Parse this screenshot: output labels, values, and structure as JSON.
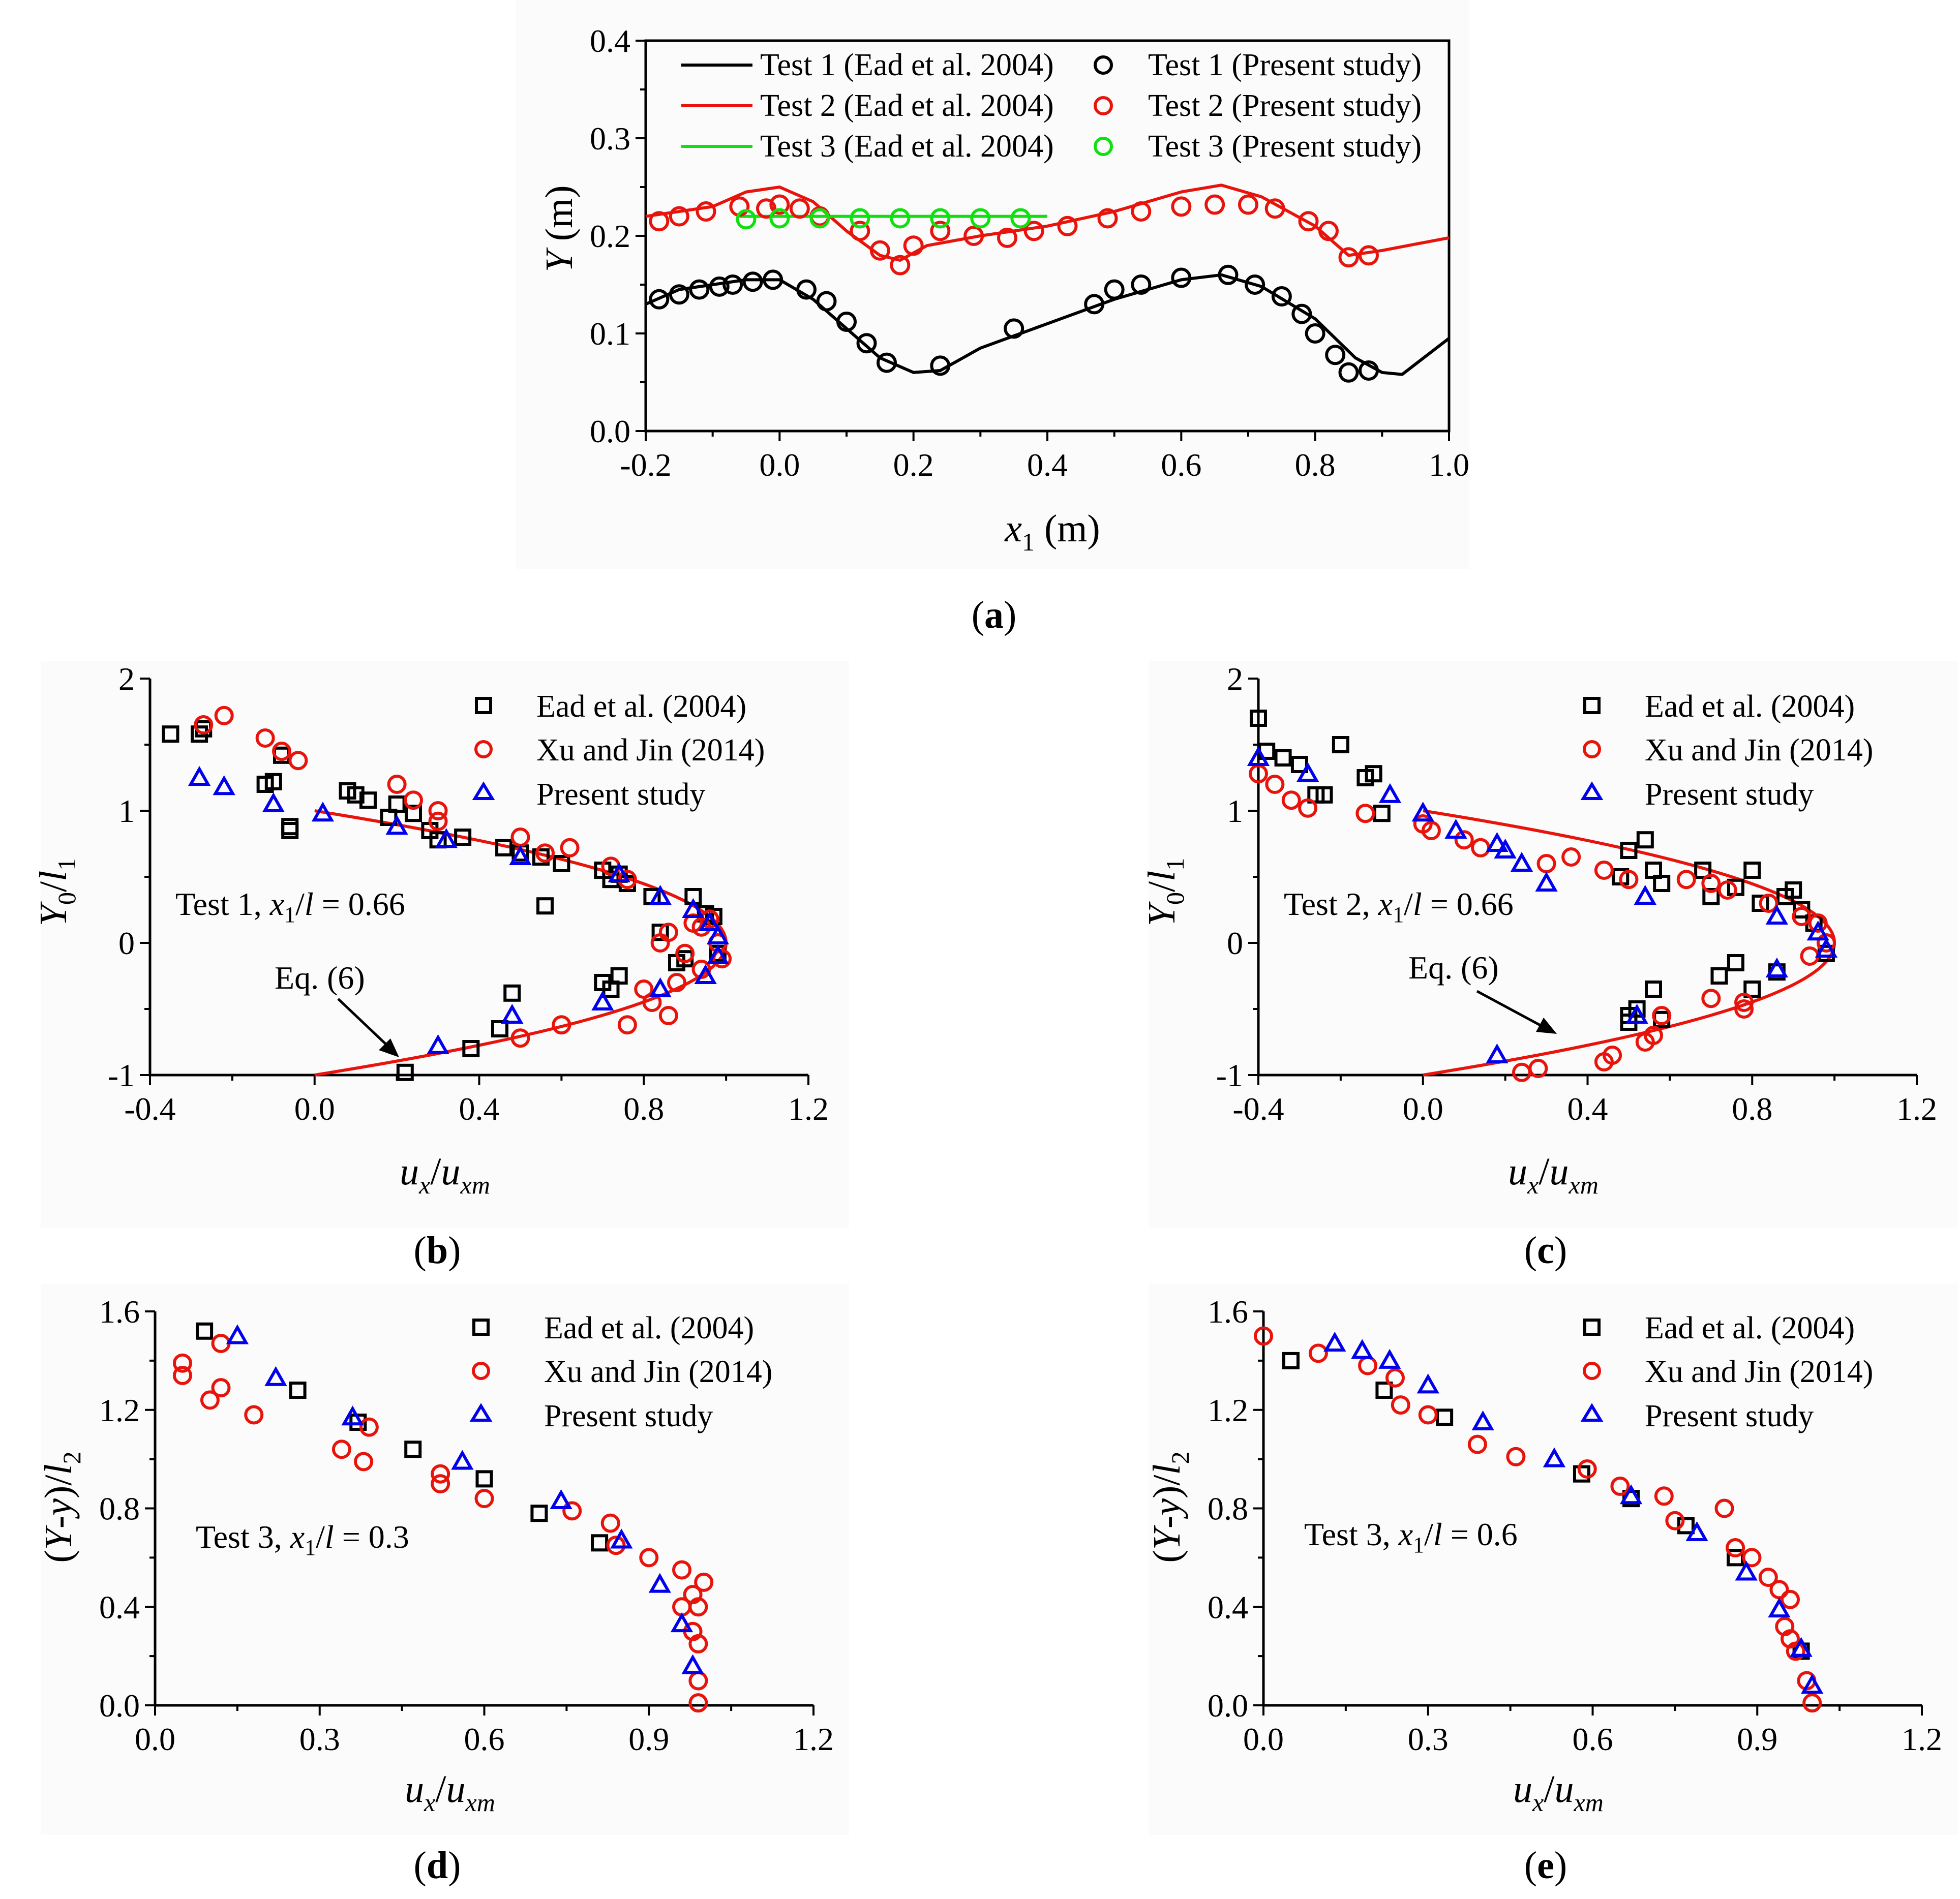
{
  "chart_data": [
    {
      "id": "a",
      "type": "line",
      "caption": "(a)",
      "xlabel": "x1 (m)",
      "ylabel": "Y (m)",
      "xlim": [
        -0.2,
        1.0
      ],
      "ylim": [
        0.0,
        0.4
      ],
      "xticks": [
        "-0.2",
        "0.0",
        "0.2",
        "0.4",
        "0.6",
        "0.8",
        "1.0"
      ],
      "yticks": [
        "0.0",
        "0.1",
        "0.2",
        "0.3",
        "0.4"
      ],
      "series": [
        {
          "name": "Test 1 (Ead et al. 2004)",
          "kind": "line",
          "color": "#000000",
          "x": [
            -0.2,
            -0.15,
            -0.1,
            -0.05,
            0.0,
            0.05,
            0.1,
            0.15,
            0.2,
            0.24,
            0.3,
            0.4,
            0.5,
            0.6,
            0.66,
            0.72,
            0.8,
            0.86,
            0.9,
            0.93,
            1.0
          ],
          "y": [
            0.13,
            0.145,
            0.15,
            0.155,
            0.155,
            0.135,
            0.105,
            0.075,
            0.06,
            0.062,
            0.085,
            0.11,
            0.135,
            0.155,
            0.16,
            0.148,
            0.115,
            0.075,
            0.06,
            0.058,
            0.095
          ]
        },
        {
          "name": "Test 2 (Ead et al. 2004)",
          "kind": "line",
          "color": "#e8140c",
          "x": [
            -0.2,
            -0.1,
            -0.05,
            0.0,
            0.05,
            0.1,
            0.15,
            0.18,
            0.22,
            0.3,
            0.4,
            0.5,
            0.6,
            0.66,
            0.72,
            0.8,
            0.85,
            0.9,
            1.0
          ],
          "y": [
            0.22,
            0.23,
            0.245,
            0.25,
            0.235,
            0.205,
            0.18,
            0.175,
            0.19,
            0.2,
            0.21,
            0.225,
            0.245,
            0.252,
            0.24,
            0.21,
            0.18,
            0.185,
            0.198
          ]
        },
        {
          "name": "Test 3 (Ead et al. 2004)",
          "kind": "line",
          "color": "#10e010",
          "x": [
            -0.06,
            0.4
          ],
          "y": [
            0.22,
            0.22
          ]
        },
        {
          "name": "Test 1 (Present study)",
          "kind": "circle",
          "color": "#000000",
          "x": [
            -0.18,
            -0.15,
            -0.12,
            -0.09,
            -0.07,
            -0.04,
            -0.01,
            0.04,
            0.07,
            0.1,
            0.13,
            0.16,
            0.24,
            0.35,
            0.47,
            0.5,
            0.54,
            0.6,
            0.67,
            0.71,
            0.75,
            0.78,
            0.8,
            0.83,
            0.85,
            0.88
          ],
          "y": [
            0.135,
            0.14,
            0.145,
            0.148,
            0.15,
            0.153,
            0.155,
            0.145,
            0.133,
            0.112,
            0.09,
            0.07,
            0.067,
            0.105,
            0.13,
            0.145,
            0.15,
            0.157,
            0.16,
            0.15,
            0.138,
            0.12,
            0.1,
            0.078,
            0.06,
            0.062
          ]
        },
        {
          "name": "Test 2 (Present study)",
          "kind": "circle",
          "color": "#e8140c",
          "x": [
            -0.18,
            -0.15,
            -0.11,
            -0.06,
            -0.02,
            0.0,
            0.03,
            0.06,
            0.12,
            0.15,
            0.18,
            0.2,
            0.24,
            0.29,
            0.34,
            0.38,
            0.43,
            0.49,
            0.54,
            0.6,
            0.65,
            0.7,
            0.74,
            0.79,
            0.82,
            0.85,
            0.88
          ],
          "y": [
            0.215,
            0.22,
            0.225,
            0.23,
            0.228,
            0.232,
            0.228,
            0.22,
            0.205,
            0.185,
            0.17,
            0.19,
            0.205,
            0.2,
            0.198,
            0.205,
            0.21,
            0.218,
            0.225,
            0.23,
            0.232,
            0.232,
            0.228,
            0.215,
            0.205,
            0.178,
            0.18
          ]
        },
        {
          "name": "Test 3 (Present study)",
          "kind": "circle",
          "color": "#10e010",
          "x": [
            -0.05,
            0.0,
            0.06,
            0.12,
            0.18,
            0.24,
            0.3,
            0.36
          ],
          "y": [
            0.217,
            0.218,
            0.218,
            0.218,
            0.218,
            0.218,
            0.218,
            0.218
          ]
        }
      ]
    },
    {
      "id": "b",
      "type": "scatter",
      "caption": "(b)",
      "xlabel": "ux/uxm",
      "ylabel": "Y0/l1",
      "annotation": "Test 1, x1/l = 0.66",
      "eq_label": "Eq. (6)",
      "xlim": [
        -0.4,
        1.2
      ],
      "ylim": [
        -1,
        2
      ],
      "xticks": [
        "-0.4",
        "0.0",
        "0.4",
        "0.8",
        "1.2"
      ],
      "yticks": [
        "-1",
        "0",
        "1",
        "2"
      ],
      "series": [
        {
          "name": "Eq. (6)",
          "kind": "curve",
          "color": "#e8140c"
        },
        {
          "name": "Ead et al. (2004)",
          "kind": "square",
          "color": "#000000",
          "x": [
            -0.35,
            -0.28,
            -0.27,
            -0.12,
            -0.1,
            -0.08,
            -0.06,
            -0.06,
            0.08,
            0.1,
            0.13,
            0.18,
            0.2,
            0.24,
            0.28,
            0.3,
            0.36,
            0.46,
            0.5,
            0.55,
            0.6,
            0.7,
            0.72,
            0.74,
            0.76,
            0.82,
            0.84,
            0.88,
            0.9,
            0.92,
            0.95,
            0.97,
            0.98,
            0.7,
            0.72,
            0.74,
            0.56,
            0.48,
            0.45,
            0.38,
            0.22
          ],
          "y": [
            1.58,
            1.58,
            1.62,
            1.2,
            1.22,
            1.42,
            0.88,
            0.85,
            1.15,
            1.12,
            1.08,
            0.95,
            1.05,
            0.98,
            0.85,
            0.78,
            0.8,
            0.72,
            0.68,
            0.65,
            0.6,
            0.55,
            0.48,
            0.52,
            0.45,
            0.35,
            0.08,
            -0.15,
            -0.12,
            0.35,
            0.22,
            0.2,
            -0.08,
            -0.3,
            -0.35,
            -0.25,
            0.28,
            -0.38,
            -0.65,
            -0.8,
            -0.98
          ]
        },
        {
          "name": "Xu and Jin (2014)",
          "kind": "circle",
          "color": "#e8140c",
          "x": [
            -0.27,
            -0.22,
            -0.12,
            -0.08,
            -0.04,
            0.2,
            0.24,
            0.3,
            0.3,
            0.5,
            0.56,
            0.62,
            0.72,
            0.76,
            0.84,
            0.86,
            0.9,
            0.92,
            0.94,
            0.96,
            0.98,
            0.99,
            0.94,
            0.88,
            0.86,
            0.82,
            0.8,
            0.76,
            0.6,
            0.5
          ],
          "y": [
            1.65,
            1.72,
            1.55,
            1.45,
            1.38,
            1.2,
            1.08,
            0.92,
            1.0,
            0.8,
            0.68,
            0.72,
            0.58,
            0.48,
            0.0,
            0.08,
            -0.08,
            0.15,
            0.12,
            0.18,
            0.0,
            -0.12,
            -0.2,
            -0.3,
            -0.55,
            -0.45,
            -0.35,
            -0.62,
            -0.62,
            -0.72
          ]
        },
        {
          "name": "Present study",
          "kind": "triangle",
          "color": "#0000ee",
          "x": [
            -0.28,
            -0.22,
            -0.1,
            0.02,
            0.2,
            0.32,
            0.5,
            0.74,
            0.84,
            0.92,
            0.96,
            0.98,
            0.98,
            0.95,
            0.84,
            0.7,
            0.48,
            0.3
          ],
          "y": [
            1.25,
            1.18,
            1.05,
            0.98,
            0.88,
            0.78,
            0.65,
            0.52,
            0.35,
            0.25,
            0.15,
            0.05,
            -0.1,
            -0.25,
            -0.35,
            -0.45,
            -0.55,
            -0.78
          ]
        }
      ]
    },
    {
      "id": "c",
      "type": "scatter",
      "caption": "(c)",
      "xlabel": "ux/uxm",
      "ylabel": "Y0/l1",
      "annotation": "Test 2, x1/l = 0.66",
      "eq_label": "Eq. (6)",
      "xlim": [
        -0.4,
        1.2
      ],
      "ylim": [
        -1,
        2
      ],
      "xticks": [
        "-0.4",
        "0.0",
        "0.4",
        "0.8",
        "1.2"
      ],
      "yticks": [
        "-1",
        "0",
        "1",
        "2"
      ],
      "series": [
        {
          "name": "Eq. (6)",
          "kind": "curve",
          "color": "#e8140c"
        },
        {
          "name": "Ead et al. (2004)",
          "kind": "square",
          "color": "#000000",
          "x": [
            -0.4,
            -0.38,
            -0.34,
            -0.3,
            -0.26,
            -0.24,
            -0.2,
            -0.14,
            -0.12,
            -0.1,
            0.48,
            0.5,
            0.54,
            0.56,
            0.58,
            0.68,
            0.7,
            0.76,
            0.8,
            0.82,
            0.88,
            0.9,
            0.92,
            0.95,
            0.98,
            0.72,
            0.76,
            0.8,
            0.86,
            0.5,
            0.52,
            0.56,
            0.58,
            0.5
          ],
          "y": [
            1.7,
            1.45,
            1.4,
            1.35,
            1.12,
            1.12,
            1.5,
            1.25,
            1.28,
            0.98,
            0.5,
            0.7,
            0.78,
            0.55,
            0.45,
            0.55,
            0.35,
            0.42,
            0.55,
            0.3,
            0.35,
            0.4,
            0.25,
            0.15,
            -0.08,
            -0.25,
            -0.15,
            -0.35,
            -0.22,
            -0.55,
            -0.5,
            -0.35,
            -0.58,
            -0.6
          ]
        },
        {
          "name": "Xu and Jin (2014)",
          "kind": "circle",
          "color": "#e8140c",
          "x": [
            -0.4,
            -0.36,
            -0.32,
            -0.28,
            -0.14,
            0.0,
            0.02,
            0.1,
            0.14,
            0.3,
            0.36,
            0.44,
            0.5,
            0.64,
            0.7,
            0.74,
            0.84,
            0.92,
            0.96,
            0.98,
            0.94,
            0.78,
            0.78,
            0.7,
            0.58,
            0.56,
            0.54,
            0.46,
            0.44,
            0.28,
            0.24
          ],
          "y": [
            1.28,
            1.2,
            1.08,
            1.02,
            0.98,
            0.9,
            0.85,
            0.78,
            0.72,
            0.6,
            0.65,
            0.55,
            0.48,
            0.48,
            0.45,
            0.4,
            0.3,
            0.2,
            0.15,
            0.0,
            -0.1,
            -0.45,
            -0.5,
            -0.42,
            -0.55,
            -0.7,
            -0.75,
            -0.85,
            -0.9,
            -0.95,
            -0.98
          ]
        },
        {
          "name": "Present study",
          "kind": "triangle",
          "color": "#0000ee",
          "x": [
            -0.4,
            -0.28,
            -0.08,
            0.0,
            0.08,
            0.18,
            0.2,
            0.24,
            0.3,
            0.54,
            0.86,
            0.96,
            0.98,
            0.86,
            0.52,
            0.18
          ],
          "y": [
            1.4,
            1.28,
            1.12,
            0.98,
            0.85,
            0.75,
            0.7,
            0.6,
            0.45,
            0.35,
            0.2,
            0.08,
            -0.05,
            -0.2,
            -0.55,
            -0.85
          ]
        }
      ]
    },
    {
      "id": "d",
      "type": "scatter",
      "caption": "(d)",
      "xlabel": "ux/uxm",
      "ylabel": "(Y-y)/l2",
      "annotation": "Test 3, x1/l = 0.3",
      "xlim": [
        0.0,
        1.2
      ],
      "ylim": [
        0.0,
        1.6
      ],
      "xticks": [
        "0.0",
        "0.3",
        "0.6",
        "0.9",
        "1.2"
      ],
      "yticks": [
        "0.0",
        "0.4",
        "0.8",
        "1.2",
        "1.6"
      ],
      "series": [
        {
          "name": "Ead et al. (2004)",
          "kind": "square",
          "color": "#000000",
          "x": [
            0.09,
            0.26,
            0.37,
            0.47,
            0.6,
            0.7,
            0.81
          ],
          "y": [
            1.52,
            1.28,
            1.15,
            1.04,
            0.92,
            0.78,
            0.66
          ]
        },
        {
          "name": "Xu and Jin (2014)",
          "kind": "circle",
          "color": "#e8140c",
          "x": [
            0.05,
            0.05,
            0.1,
            0.12,
            0.12,
            0.18,
            0.34,
            0.38,
            0.39,
            0.52,
            0.52,
            0.6,
            0.76,
            0.83,
            0.84,
            0.9,
            0.96,
            0.98,
            1.0,
            0.99,
            0.96,
            0.98,
            0.99,
            0.99,
            0.99
          ],
          "y": [
            1.39,
            1.34,
            1.24,
            1.29,
            1.47,
            1.18,
            1.04,
            0.99,
            1.13,
            0.94,
            0.9,
            0.84,
            0.79,
            0.74,
            0.65,
            0.6,
            0.55,
            0.45,
            0.5,
            0.4,
            0.4,
            0.3,
            0.25,
            0.1,
            0.01
          ]
        },
        {
          "name": "Present study",
          "kind": "triangle",
          "color": "#0000ee",
          "x": [
            0.15,
            0.22,
            0.36,
            0.56,
            0.74,
            0.85,
            0.92,
            0.96,
            0.98
          ],
          "y": [
            1.5,
            1.33,
            1.17,
            0.99,
            0.83,
            0.67,
            0.49,
            0.33,
            0.16
          ]
        }
      ]
    },
    {
      "id": "e",
      "type": "scatter",
      "caption": "(e)",
      "xlabel": "ux/uxm",
      "ylabel": "(Y-y)/l2",
      "annotation": "Test 3, x1/l = 0.6",
      "xlim": [
        0.0,
        1.2
      ],
      "ylim": [
        0.0,
        1.6
      ],
      "xticks": [
        "0.0",
        "0.3",
        "0.6",
        "0.9",
        "1.2"
      ],
      "yticks": [
        "0.0",
        "0.4",
        "0.8",
        "1.2",
        "1.6"
      ],
      "series": [
        {
          "name": "Ead et al. (2004)",
          "kind": "square",
          "color": "#000000",
          "x": [
            0.05,
            0.22,
            0.33,
            0.58,
            0.67,
            0.77,
            0.86,
            0.98
          ],
          "y": [
            1.4,
            1.28,
            1.17,
            0.94,
            0.84,
            0.73,
            0.6,
            0.22
          ]
        },
        {
          "name": "Xu and Jin (2014)",
          "kind": "circle",
          "color": "#e8140c",
          "x": [
            0.0,
            0.1,
            0.19,
            0.24,
            0.25,
            0.3,
            0.39,
            0.46,
            0.59,
            0.65,
            0.73,
            0.75,
            0.84,
            0.86,
            0.89,
            0.92,
            0.94,
            0.96,
            0.95,
            0.96,
            0.97,
            0.99,
            1.0
          ],
          "y": [
            1.5,
            1.43,
            1.38,
            1.33,
            1.22,
            1.18,
            1.06,
            1.01,
            0.96,
            0.89,
            0.85,
            0.75,
            0.8,
            0.64,
            0.6,
            0.52,
            0.47,
            0.43,
            0.32,
            0.27,
            0.22,
            0.1,
            0.01
          ]
        },
        {
          "name": "Present study",
          "kind": "triangle",
          "color": "#0000ee",
          "x": [
            0.13,
            0.18,
            0.23,
            0.3,
            0.4,
            0.53,
            0.67,
            0.79,
            0.88,
            0.94,
            0.98,
            1.0
          ],
          "y": [
            1.47,
            1.44,
            1.4,
            1.3,
            1.15,
            1.0,
            0.85,
            0.7,
            0.54,
            0.39,
            0.23,
            0.08
          ]
        }
      ]
    }
  ]
}
